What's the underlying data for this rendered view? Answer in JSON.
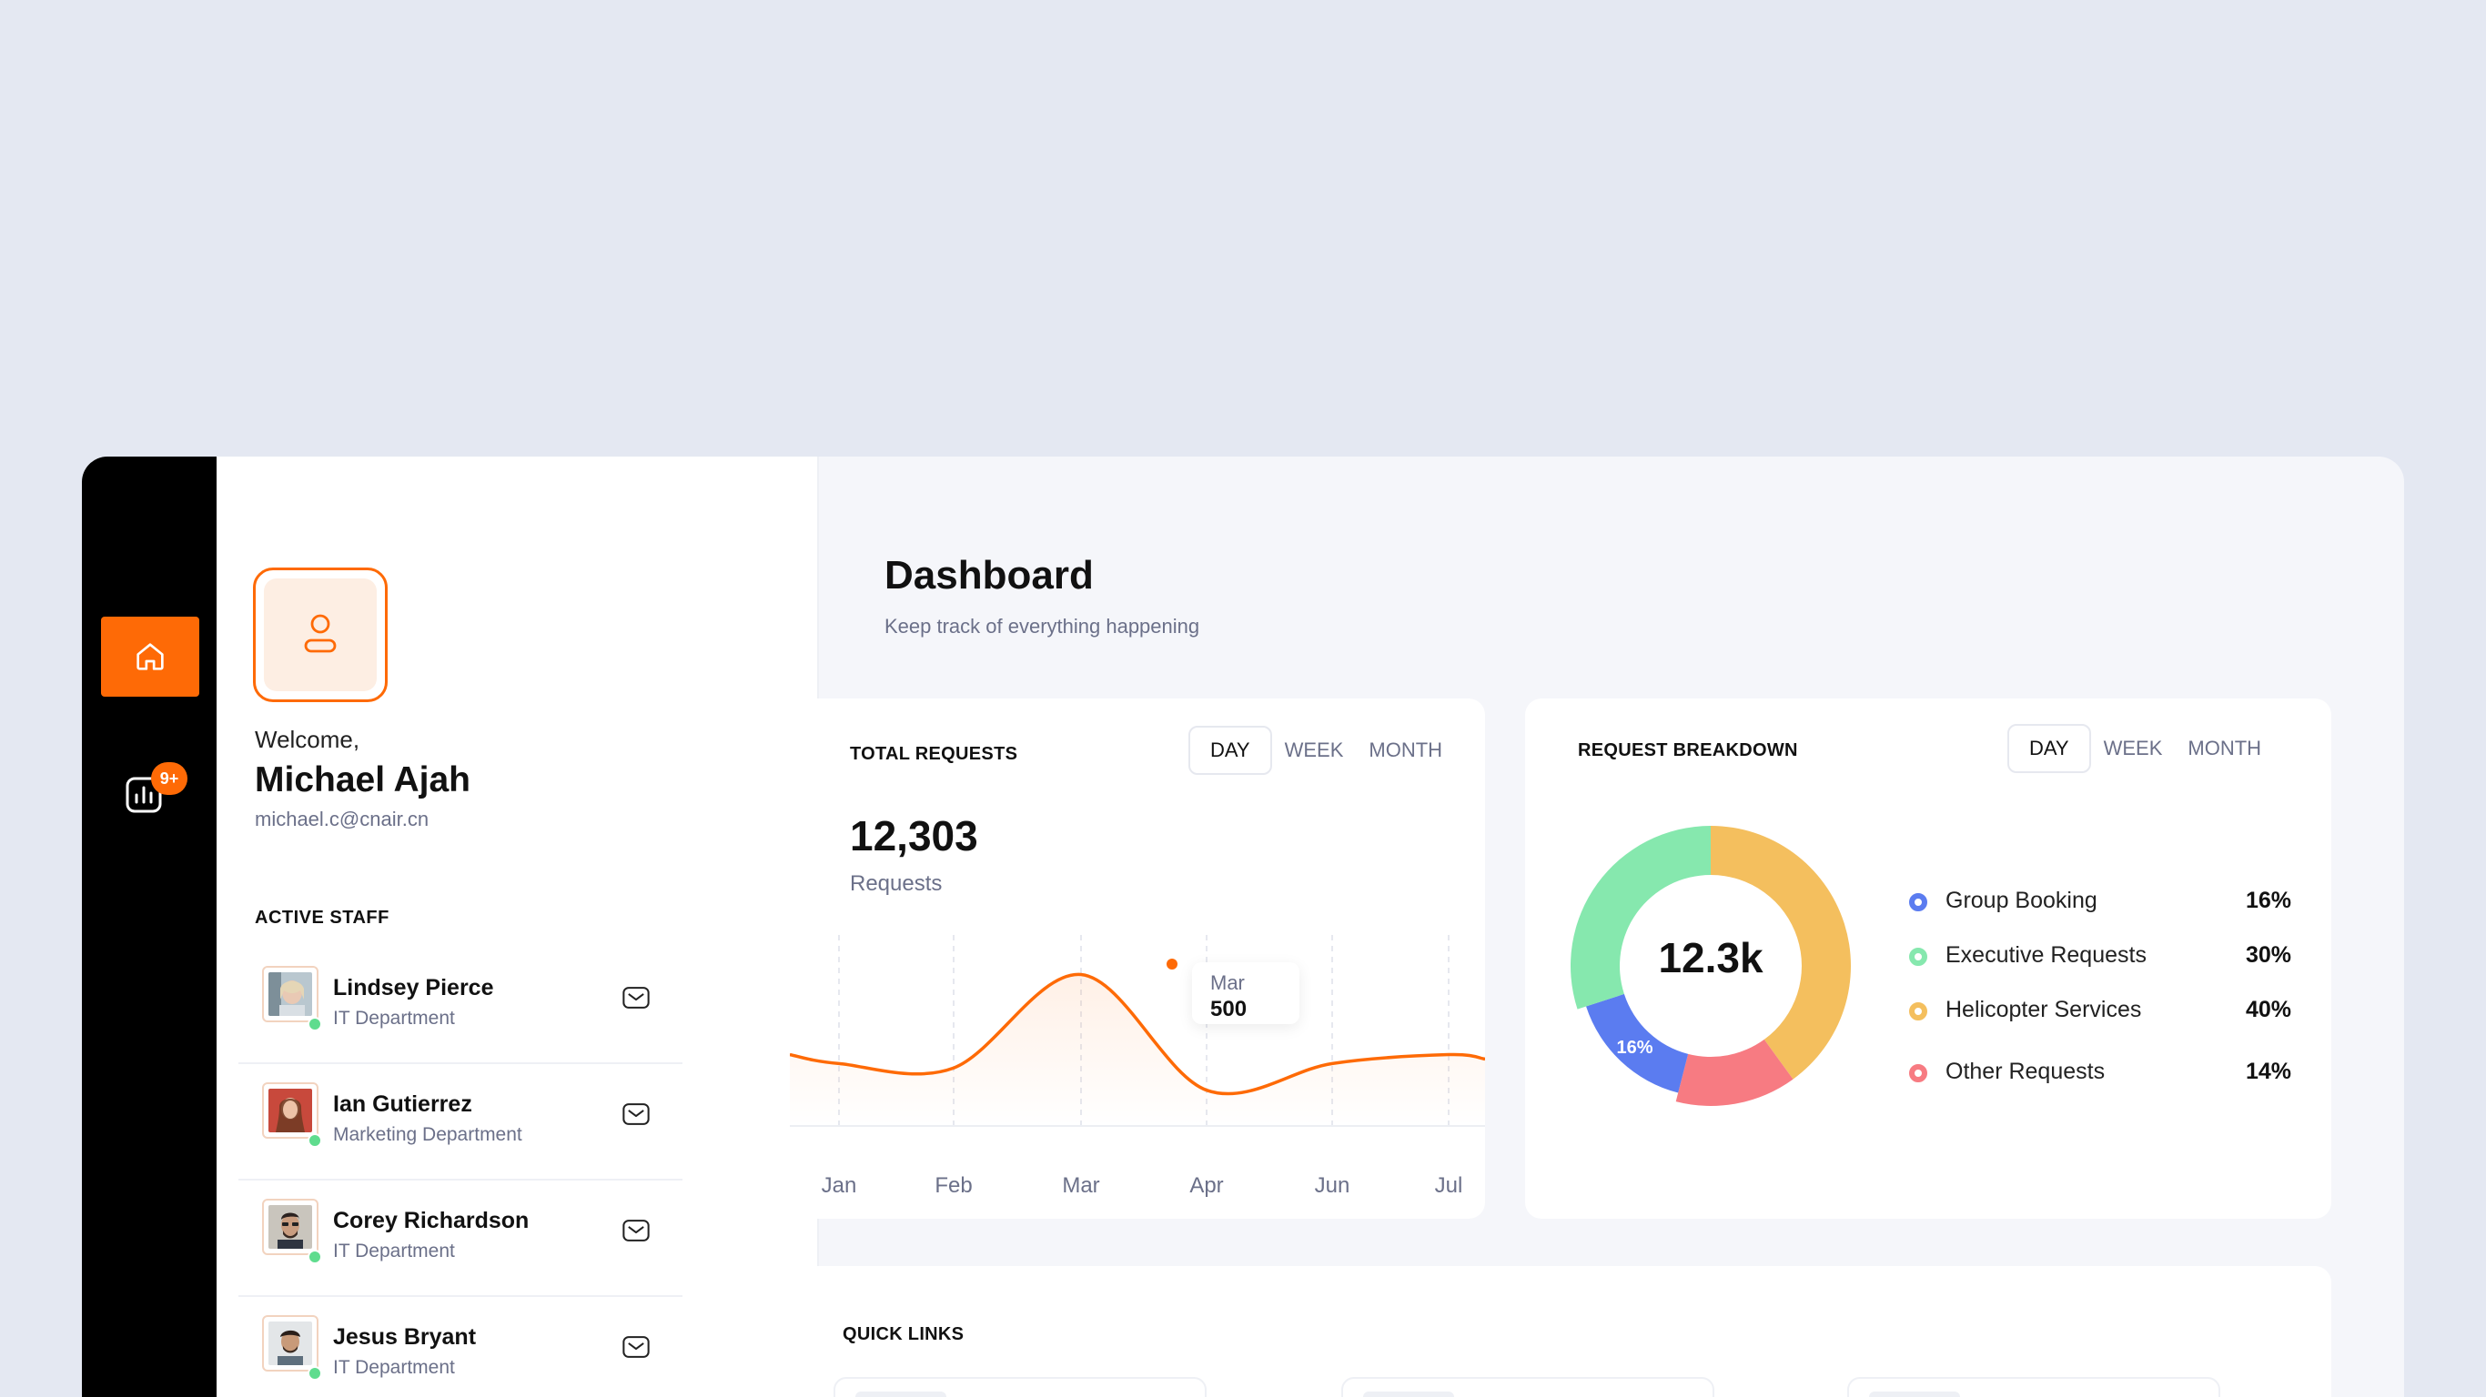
{
  "sidebar": {
    "items": [
      {
        "icon": "home-icon",
        "active": true
      },
      {
        "icon": "bar-chart-icon",
        "badge": "9+"
      }
    ],
    "accent_color": "#fe6a06"
  },
  "profile": {
    "welcome": "Welcome,",
    "name": "Michael Ajah",
    "email": "michael.c@cnair.cn",
    "avatar_icon": "user-icon"
  },
  "staff": {
    "title": "ACTIVE STAFF",
    "members": [
      {
        "name": "Lindsey Pierce",
        "department": "IT Department",
        "status": "online"
      },
      {
        "name": "Ian Gutierrez",
        "department": "Marketing Department",
        "status": "online"
      },
      {
        "name": "Corey Richardson",
        "department": "IT Department",
        "status": "online"
      },
      {
        "name": "Jesus Bryant",
        "department": "IT Department",
        "status": "online"
      }
    ]
  },
  "header": {
    "title": "Dashboard",
    "subtitle": "Keep track of everything happening"
  },
  "total_requests": {
    "title": "TOTAL REQUESTS",
    "tabs": [
      "DAY",
      "WEEK",
      "MONTH"
    ],
    "active_tab": "DAY",
    "value": "12,303",
    "unit": "Requests",
    "tooltip": {
      "label": "Mar",
      "value": "500"
    }
  },
  "request_breakdown": {
    "title": "REQUEST BREAKDOWN",
    "tabs": [
      "DAY",
      "WEEK",
      "MONTH"
    ],
    "active_tab": "DAY",
    "center_label": "12.3k",
    "slice_label": "16%",
    "legend": [
      {
        "label": "Group Booking",
        "value": "16%",
        "color": "#5b7cf0"
      },
      {
        "label": "Executive Requests",
        "value": "30%",
        "color": "#86e8ae"
      },
      {
        "label": "Helicopter Services",
        "value": "40%",
        "color": "#f4bf5e"
      },
      {
        "label": "Other Requests",
        "value": "14%",
        "color": "#f77b82"
      }
    ]
  },
  "quick_links": {
    "title": "QUICK LINKS"
  },
  "chart_data": [
    {
      "type": "line",
      "title": "TOTAL REQUESTS",
      "x": [
        "Jan",
        "Feb",
        "Mar",
        "Apr",
        "Jun",
        "Jul"
      ],
      "series": [
        {
          "values": [
            300,
            290,
            500,
            240,
            300,
            320
          ]
        }
      ],
      "line_color": "#fe6a06",
      "highlight": {
        "x": "Mar",
        "value": 500
      },
      "grid": "vertical dashed"
    },
    {
      "type": "pie",
      "title": "REQUEST BREAKDOWN",
      "donut": true,
      "categories": [
        "Group Booking",
        "Executive Requests",
        "Helicopter Services",
        "Other Requests"
      ],
      "values": [
        16,
        30,
        40,
        14
      ],
      "colors": [
        "#5b7cf0",
        "#86e8ae",
        "#f4bf5e",
        "#f77b82"
      ],
      "center_label": "12.3k"
    }
  ]
}
